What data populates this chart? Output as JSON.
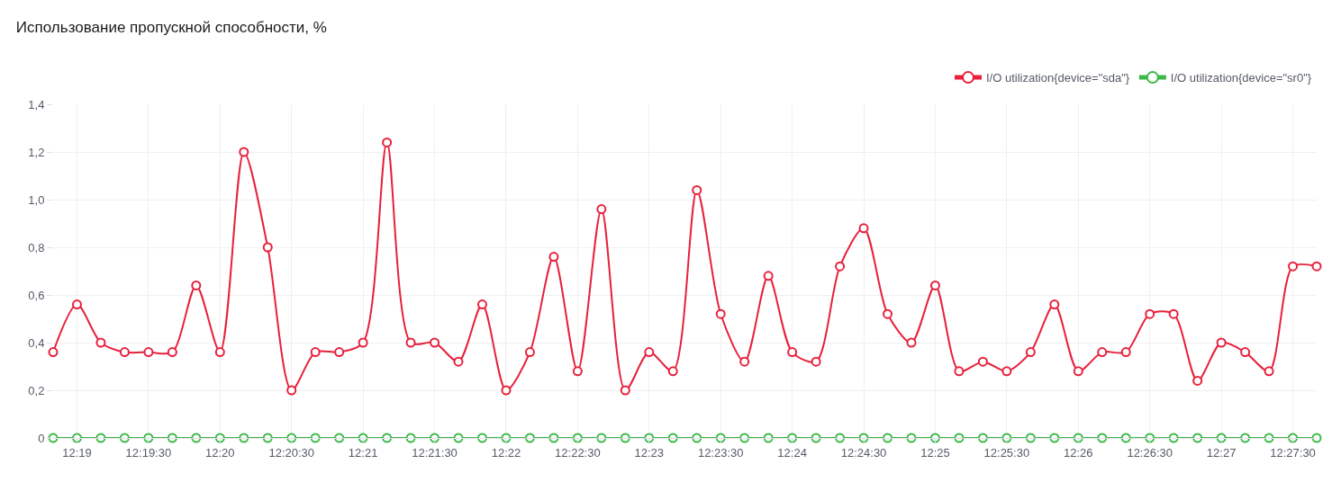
{
  "chart_data": {
    "type": "line",
    "title": "Использование пропускной способности, %",
    "x": [
      12.313889,
      12.316667,
      12.319444,
      12.322222,
      12.325,
      12.327778,
      12.330556,
      12.333333,
      12.336111,
      12.338889,
      12.341667,
      12.344444,
      12.347222,
      12.35,
      12.352778,
      12.355556,
      12.358333,
      12.361111,
      12.363889,
      12.366667,
      12.369444,
      12.372222,
      12.375,
      12.377778,
      12.380556,
      12.383333,
      12.386111,
      12.388889,
      12.391667,
      12.394444,
      12.397222,
      12.4,
      12.402778,
      12.405556,
      12.408333,
      12.411111,
      12.413889,
      12.416667,
      12.419444,
      12.422222,
      12.425,
      12.427778,
      12.430556,
      12.433333,
      12.436111,
      12.438889,
      12.441667,
      12.444444,
      12.447222,
      12.45,
      12.452778,
      12.455556,
      12.458333,
      12.461111
    ],
    "series": [
      {
        "name": "I/O utilization{device=\"sda\"}",
        "color": "#e8203c",
        "values": [
          0.36,
          0.56,
          0.4,
          0.36,
          0.36,
          0.36,
          0.64,
          0.36,
          1.2,
          0.8,
          0.2,
          0.36,
          0.36,
          0.4,
          1.24,
          0.4,
          0.4,
          0.32,
          0.56,
          0.2,
          0.36,
          0.76,
          0.28,
          0.96,
          0.2,
          0.36,
          0.28,
          1.04,
          0.52,
          0.32,
          0.68,
          0.36,
          0.32,
          0.72,
          0.88,
          0.52,
          0.4,
          0.64,
          0.28,
          0.32,
          0.28,
          0.36,
          0.56,
          0.28,
          0.36,
          0.36,
          0.52,
          0.52,
          0.24,
          0.4,
          0.36,
          0.28,
          0.72,
          0.72
        ]
      },
      {
        "name": "I/O utilization{device=\"sr0\"}",
        "color": "#3cb94a",
        "values": [
          0,
          0,
          0,
          0,
          0,
          0,
          0,
          0,
          0,
          0,
          0,
          0,
          0,
          0,
          0,
          0,
          0,
          0,
          0,
          0,
          0,
          0,
          0,
          0,
          0,
          0,
          0,
          0,
          0,
          0,
          0,
          0,
          0,
          0,
          0,
          0,
          0,
          0,
          0,
          0,
          0,
          0,
          0,
          0,
          0,
          0,
          0,
          0,
          0,
          0,
          0,
          0,
          0,
          0
        ]
      }
    ],
    "xlim": [
      12.313889,
      12.461111
    ],
    "xticks": [
      {
        "value": 12.316667,
        "label": "12:19"
      },
      {
        "value": 12.325,
        "label": "12:19:30"
      },
      {
        "value": 12.333333,
        "label": "12:20"
      },
      {
        "value": 12.341667,
        "label": "12:20:30"
      },
      {
        "value": 12.35,
        "label": "12:21"
      },
      {
        "value": 12.358333,
        "label": "12:21:30"
      },
      {
        "value": 12.366667,
        "label": "12:22"
      },
      {
        "value": 12.375,
        "label": "12:22:30"
      },
      {
        "value": 12.383333,
        "label": "12:23"
      },
      {
        "value": 12.391667,
        "label": "12:23:30"
      },
      {
        "value": 12.4,
        "label": "12:24"
      },
      {
        "value": 12.408333,
        "label": "12:24:30"
      },
      {
        "value": 12.416667,
        "label": "12:25"
      },
      {
        "value": 12.425,
        "label": "12:25:30"
      },
      {
        "value": 12.433333,
        "label": "12:26"
      },
      {
        "value": 12.441667,
        "label": "12:26:30"
      },
      {
        "value": 12.45,
        "label": "12:27"
      },
      {
        "value": 12.458333,
        "label": "12:27:30"
      }
    ],
    "ylim": [
      0,
      1.4
    ],
    "yticks": [
      0,
      {
        "value": 0.2,
        "label": "0,2"
      },
      {
        "value": 0.4,
        "label": "0,4"
      },
      {
        "value": 0.6,
        "label": "0,6"
      },
      {
        "value": 0.8,
        "label": "0,8"
      },
      {
        "value": 1.0,
        "label": "1,0"
      },
      {
        "value": 1.2,
        "label": "1,2"
      },
      {
        "value": 1.4,
        "label": "1,4"
      }
    ],
    "grid": true,
    "legend": "top right",
    "marker": "circle",
    "line_style": "solid"
  }
}
